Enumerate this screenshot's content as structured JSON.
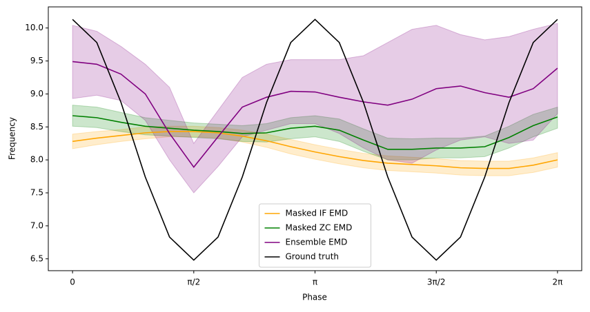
{
  "chart_data": {
    "type": "line",
    "xlabel": "Phase",
    "ylabel": "Frequency",
    "x": [
      0,
      0.3142,
      0.6283,
      0.9425,
      1.2566,
      1.5708,
      1.885,
      2.1991,
      2.5133,
      2.8274,
      3.1416,
      3.4558,
      3.7699,
      4.0841,
      4.3982,
      4.7124,
      5.0265,
      5.3407,
      5.6549,
      5.969,
      6.2832
    ],
    "xlim": [
      -0.314,
      6.597
    ],
    "xticks": [
      {
        "value": 0,
        "label": "0"
      },
      {
        "value": 1.5708,
        "label": "π/2"
      },
      {
        "value": 3.1416,
        "label": "π"
      },
      {
        "value": 4.7124,
        "label": "3π/2"
      },
      {
        "value": 6.2832,
        "label": "2π"
      }
    ],
    "ylim": [
      6.32,
      10.32
    ],
    "yticks": [
      6.5,
      {
        "value": 7,
        "label": "7.0"
      },
      7.5,
      {
        "value": 8,
        "label": "8.0"
      },
      8.5,
      {
        "value": 9,
        "label": "9.0"
      },
      9.5,
      {
        "value": 10,
        "label": "10.0"
      }
    ],
    "legend": "lower center",
    "series": [
      {
        "name": "Masked IF EMD",
        "color": "#ffa500",
        "values": [
          8.28,
          8.33,
          8.37,
          8.41,
          8.43,
          8.43,
          8.41,
          8.36,
          8.29,
          8.2,
          8.12,
          8.05,
          7.99,
          7.95,
          7.93,
          7.91,
          7.88,
          7.87,
          7.87,
          7.92,
          8.0
        ],
        "lower": [
          8.17,
          8.23,
          8.28,
          8.32,
          8.35,
          8.35,
          8.33,
          8.27,
          8.19,
          8.09,
          8.01,
          7.94,
          7.88,
          7.84,
          7.82,
          7.8,
          7.77,
          7.76,
          7.76,
          7.81,
          7.89
        ],
        "upper": [
          8.39,
          8.43,
          8.46,
          8.5,
          8.51,
          8.51,
          8.49,
          8.45,
          8.39,
          8.31,
          8.23,
          8.16,
          8.1,
          8.06,
          8.04,
          8.02,
          7.99,
          7.98,
          7.98,
          8.03,
          8.11
        ]
      },
      {
        "name": "Masked ZC EMD",
        "color": "#008000",
        "values": [
          8.67,
          8.64,
          8.57,
          8.51,
          8.48,
          8.45,
          8.43,
          8.4,
          8.41,
          8.48,
          8.51,
          8.45,
          8.3,
          8.16,
          8.16,
          8.18,
          8.18,
          8.2,
          8.34,
          8.52,
          8.65
        ],
        "lower": [
          8.51,
          8.49,
          8.43,
          8.38,
          8.36,
          8.34,
          8.32,
          8.28,
          8.27,
          8.32,
          8.35,
          8.28,
          8.13,
          8.0,
          8.0,
          8.03,
          8.03,
          8.05,
          8.18,
          8.35,
          8.48
        ],
        "upper": [
          8.83,
          8.8,
          8.72,
          8.64,
          8.6,
          8.56,
          8.54,
          8.52,
          8.55,
          8.64,
          8.67,
          8.62,
          8.47,
          8.33,
          8.32,
          8.33,
          8.33,
          8.36,
          8.51,
          8.69,
          8.8
        ]
      },
      {
        "name": "Ensemble EMD",
        "color": "#800080",
        "values": [
          9.49,
          9.45,
          9.3,
          9.0,
          8.4,
          7.89,
          8.35,
          8.8,
          8.95,
          9.04,
          9.03,
          8.95,
          8.88,
          8.83,
          8.92,
          9.08,
          9.12,
          9.02,
          8.95,
          9.08,
          9.39
        ],
        "lower": [
          8.93,
          8.98,
          8.9,
          8.6,
          8.0,
          7.5,
          7.9,
          8.35,
          8.45,
          8.55,
          8.55,
          8.4,
          8.18,
          8.0,
          7.95,
          8.15,
          8.3,
          8.35,
          8.25,
          8.3,
          8.7
        ],
        "upper": [
          10.04,
          9.95,
          9.72,
          9.45,
          9.1,
          8.25,
          8.75,
          9.25,
          9.45,
          9.52,
          9.52,
          9.52,
          9.58,
          9.78,
          9.98,
          10.04,
          9.9,
          9.82,
          9.87,
          9.98,
          10.07
        ]
      },
      {
        "name": "Ground truth",
        "color": "#000000",
        "values": [
          10.13,
          9.78,
          8.87,
          7.74,
          6.83,
          6.48,
          6.83,
          7.74,
          8.87,
          9.78,
          10.13,
          9.78,
          8.87,
          7.74,
          6.83,
          6.48,
          6.83,
          7.74,
          8.87,
          9.78,
          10.13
        ]
      }
    ]
  }
}
